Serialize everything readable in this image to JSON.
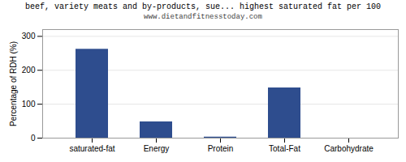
{
  "chart_data": {
    "type": "bar",
    "title": "beef, variety meats and by-products, sue... highest saturated fat per 100",
    "subtitle": "www.dietandfitnesstoday.com",
    "categories": [
      "saturated-fat",
      "Energy",
      "Protein",
      "Total-Fat",
      "Carbohydrate"
    ],
    "values": [
      262,
      48,
      3,
      148,
      0
    ],
    "color": "#2e4d8e",
    "ylabel": "Percentage of RDH (%)",
    "ylim": [
      0,
      320
    ],
    "yticks": [
      0,
      100,
      200,
      300
    ],
    "grid": true
  }
}
